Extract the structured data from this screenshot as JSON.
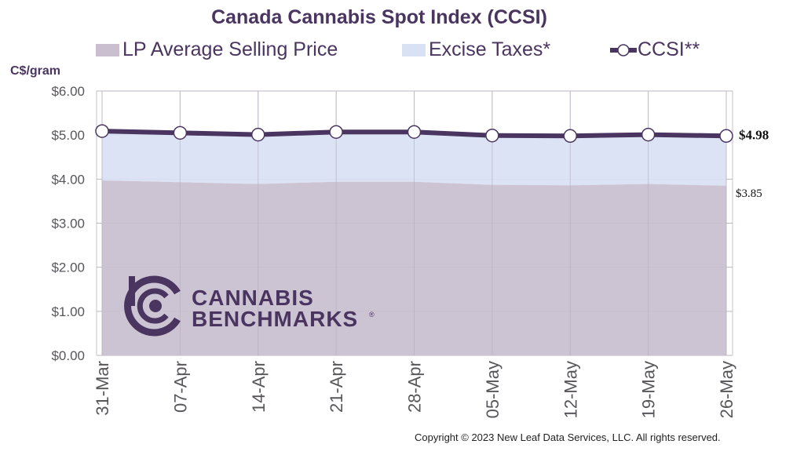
{
  "chart_data": {
    "type": "area",
    "title": "Canada Cannabis Spot Index (CCSI)",
    "ylabel": "C$/gram",
    "xlabel": "",
    "ylim": [
      0,
      6
    ],
    "yticks": [
      "$0.00",
      "$1.00",
      "$2.00",
      "$3.00",
      "$4.00",
      "$5.00",
      "$6.00"
    ],
    "categories": [
      "31-Mar",
      "07-Apr",
      "14-Apr",
      "21-Apr",
      "28-Apr",
      "05-May",
      "12-May",
      "19-May",
      "26-May"
    ],
    "series": [
      {
        "name": "LP Average Selling Price",
        "kind": "area",
        "color": "#c9bfcf",
        "values": [
          3.97,
          3.93,
          3.89,
          3.94,
          3.94,
          3.87,
          3.86,
          3.89,
          3.85
        ]
      },
      {
        "name": "Excise Taxes*",
        "kind": "stacked-area",
        "color": "#d9e1f4",
        "values": [
          1.12,
          1.12,
          1.12,
          1.13,
          1.13,
          1.12,
          1.12,
          1.12,
          1.13
        ]
      },
      {
        "name": "CCSI**",
        "kind": "line",
        "color": "#4a3560",
        "values": [
          5.09,
          5.05,
          5.01,
          5.07,
          5.07,
          4.99,
          4.98,
          5.01,
          4.98
        ]
      }
    ],
    "annotations": {
      "ccsi_last": "$4.98",
      "lp_last": "$3.85"
    },
    "grid": true,
    "legend_position": "top"
  },
  "logo": {
    "text_line1": "CANNABIS",
    "text_line2": "BENCHMARKS",
    "mark": "®"
  },
  "copyright": "Copyright © 2023 New Leaf Data Services, LLC. All rights reserved.",
  "colors": {
    "title": "#4a3560",
    "grid": "#bdb6c4",
    "plot_border": "#c8c2cc"
  }
}
